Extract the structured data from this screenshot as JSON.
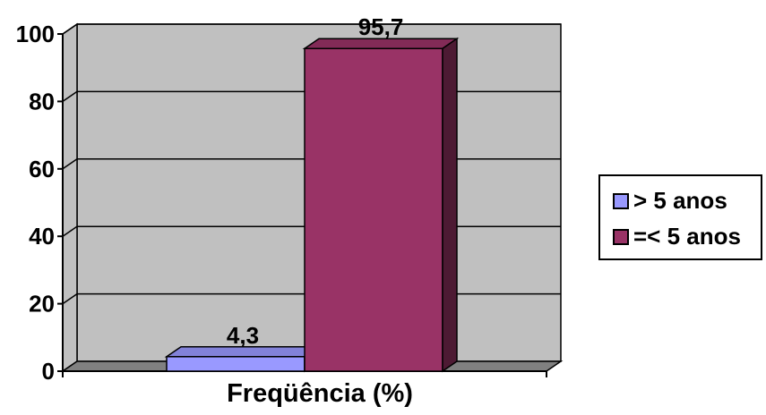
{
  "chart_data": {
    "type": "bar",
    "categories": [
      "Freqüência (%)"
    ],
    "xlabel": "Freqüência (%)",
    "ylim": [
      0,
      100
    ],
    "yticks": [
      0,
      20,
      40,
      60,
      80,
      100
    ],
    "grid": true,
    "three_d": true,
    "legend_position": "right",
    "series": [
      {
        "name": "> 5 anos",
        "values": [
          4.3
        ],
        "label": "4,3",
        "color": "#9999ff"
      },
      {
        "name": "=< 5 anos",
        "values": [
          95.7
        ],
        "label": "95,7",
        "color": "#993366"
      }
    ],
    "colors": {
      "wall": "#c0c0c0",
      "floor": "#808080"
    }
  }
}
